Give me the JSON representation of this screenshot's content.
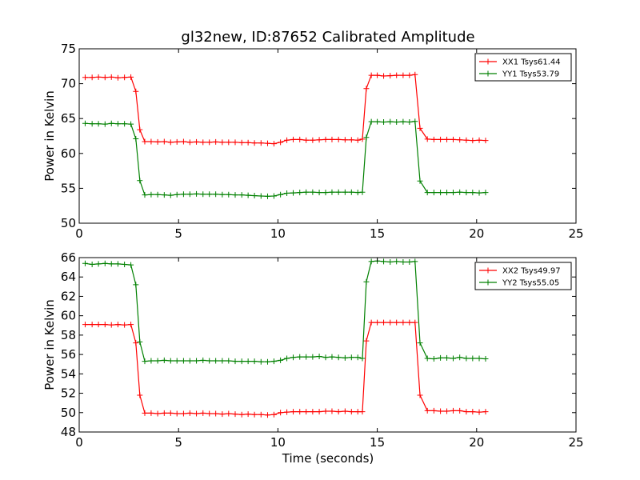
{
  "figure_title": "gl32new, ID:87652 Calibrated Amplitude",
  "chart_data": [
    {
      "type": "line",
      "title": "gl32new, ID:87652 Calibrated Amplitude",
      "xlabel": "",
      "ylabel": "Power in Kelvin",
      "xlim": [
        0,
        25
      ],
      "ylim": [
        50,
        75
      ],
      "xticks": [
        0,
        5,
        10,
        15,
        20,
        25
      ],
      "yticks": [
        50,
        55,
        60,
        65,
        70,
        75
      ],
      "legend": "top-right",
      "grid": false,
      "x": [
        0.3,
        0.65,
        0.97,
        1.3,
        1.62,
        1.95,
        2.28,
        2.6,
        2.85,
        3.05,
        3.3,
        3.62,
        3.95,
        4.28,
        4.6,
        4.92,
        5.25,
        5.57,
        5.9,
        6.23,
        6.55,
        6.87,
        7.2,
        7.52,
        7.85,
        8.18,
        8.5,
        8.82,
        9.15,
        9.48,
        9.8,
        10.13,
        10.45,
        10.77,
        11.1,
        11.42,
        11.75,
        12.08,
        12.4,
        12.72,
        13.05,
        13.38,
        13.7,
        14.02,
        14.25,
        14.45,
        14.7,
        15.0,
        15.32,
        15.65,
        15.97,
        16.3,
        16.62,
        16.9,
        17.15,
        17.52,
        17.85,
        18.18,
        18.5,
        18.82,
        19.15,
        19.48,
        19.8,
        20.13,
        20.45
      ],
      "series": [
        {
          "name": "XX1 Tsys61.44",
          "color": "#ff0000",
          "values": [
            70.9,
            70.9,
            70.95,
            70.9,
            70.95,
            70.85,
            70.9,
            70.95,
            68.9,
            63.4,
            61.7,
            61.7,
            61.65,
            61.7,
            61.6,
            61.65,
            61.7,
            61.6,
            61.65,
            61.6,
            61.6,
            61.65,
            61.6,
            61.6,
            61.6,
            61.55,
            61.55,
            61.5,
            61.5,
            61.45,
            61.4,
            61.6,
            61.9,
            62.0,
            62.0,
            61.9,
            61.9,
            61.95,
            62.0,
            62.0,
            62.0,
            61.95,
            61.95,
            61.9,
            62.05,
            69.3,
            71.2,
            71.2,
            71.1,
            71.15,
            71.2,
            71.2,
            71.2,
            71.3,
            63.6,
            62.05,
            62.0,
            62.0,
            62.0,
            62.0,
            61.95,
            61.9,
            61.85,
            61.9,
            61.85
          ]
        },
        {
          "name": "YY1 Tsys53.79",
          "color": "#008000",
          "values": [
            64.3,
            64.25,
            64.25,
            64.2,
            64.3,
            64.25,
            64.25,
            64.2,
            62.1,
            56.1,
            54.05,
            54.1,
            54.1,
            54.05,
            54.0,
            54.1,
            54.15,
            54.15,
            54.2,
            54.15,
            54.15,
            54.15,
            54.1,
            54.1,
            54.05,
            54.05,
            54.0,
            53.95,
            53.9,
            53.85,
            53.9,
            54.1,
            54.3,
            54.35,
            54.4,
            54.45,
            54.45,
            54.4,
            54.4,
            54.45,
            54.45,
            54.45,
            54.45,
            54.4,
            54.45,
            62.3,
            64.55,
            64.55,
            64.5,
            64.55,
            64.5,
            64.55,
            64.5,
            64.6,
            56.05,
            54.4,
            54.4,
            54.4,
            54.4,
            54.4,
            54.45,
            54.4,
            54.4,
            54.35,
            54.4
          ]
        }
      ]
    },
    {
      "type": "line",
      "title": "",
      "xlabel": "Time (seconds)",
      "ylabel": "Power in Kelvin",
      "xlim": [
        0,
        25
      ],
      "ylim": [
        48,
        66
      ],
      "xticks": [
        0,
        5,
        10,
        15,
        20,
        25
      ],
      "yticks": [
        48,
        50,
        52,
        54,
        56,
        58,
        60,
        62,
        64,
        66
      ],
      "legend": "top-right",
      "grid": false,
      "x": [
        0.3,
        0.65,
        0.97,
        1.3,
        1.62,
        1.95,
        2.28,
        2.6,
        2.85,
        3.05,
        3.3,
        3.62,
        3.95,
        4.28,
        4.6,
        4.92,
        5.25,
        5.57,
        5.9,
        6.23,
        6.55,
        6.87,
        7.2,
        7.52,
        7.85,
        8.18,
        8.5,
        8.82,
        9.15,
        9.48,
        9.8,
        10.13,
        10.45,
        10.77,
        11.1,
        11.42,
        11.75,
        12.08,
        12.4,
        12.72,
        13.05,
        13.38,
        13.7,
        14.02,
        14.25,
        14.45,
        14.7,
        15.0,
        15.32,
        15.65,
        15.97,
        16.3,
        16.62,
        16.9,
        17.15,
        17.52,
        17.85,
        18.18,
        18.5,
        18.82,
        19.15,
        19.48,
        19.8,
        20.13,
        20.45
      ],
      "series": [
        {
          "name": "XX2 Tsys49.97",
          "color": "#ff0000",
          "values": [
            59.1,
            59.1,
            59.1,
            59.1,
            59.05,
            59.1,
            59.05,
            59.1,
            57.2,
            51.8,
            49.95,
            49.95,
            49.9,
            49.95,
            49.95,
            49.9,
            49.9,
            49.95,
            49.9,
            49.95,
            49.9,
            49.9,
            49.85,
            49.9,
            49.85,
            49.8,
            49.85,
            49.8,
            49.8,
            49.75,
            49.8,
            50.0,
            50.05,
            50.1,
            50.1,
            50.1,
            50.1,
            50.1,
            50.15,
            50.15,
            50.1,
            50.15,
            50.1,
            50.1,
            50.1,
            57.4,
            59.3,
            59.3,
            59.3,
            59.3,
            59.3,
            59.3,
            59.3,
            59.3,
            51.8,
            50.2,
            50.2,
            50.15,
            50.15,
            50.2,
            50.2,
            50.1,
            50.1,
            50.05,
            50.1
          ]
        },
        {
          "name": "YY2 Tsys55.05",
          "color": "#008000",
          "values": [
            65.4,
            65.3,
            65.35,
            65.4,
            65.35,
            65.35,
            65.3,
            65.25,
            63.2,
            57.3,
            55.3,
            55.35,
            55.35,
            55.4,
            55.35,
            55.35,
            55.35,
            55.35,
            55.35,
            55.4,
            55.35,
            55.35,
            55.35,
            55.35,
            55.3,
            55.3,
            55.3,
            55.3,
            55.25,
            55.25,
            55.3,
            55.4,
            55.6,
            55.7,
            55.75,
            55.75,
            55.75,
            55.8,
            55.7,
            55.75,
            55.7,
            55.65,
            55.7,
            55.7,
            55.6,
            63.5,
            65.6,
            65.65,
            65.6,
            65.55,
            65.6,
            65.55,
            65.55,
            65.6,
            57.2,
            55.6,
            55.55,
            55.65,
            55.65,
            55.6,
            55.7,
            55.6,
            55.6,
            55.6,
            55.55
          ]
        }
      ]
    }
  ]
}
